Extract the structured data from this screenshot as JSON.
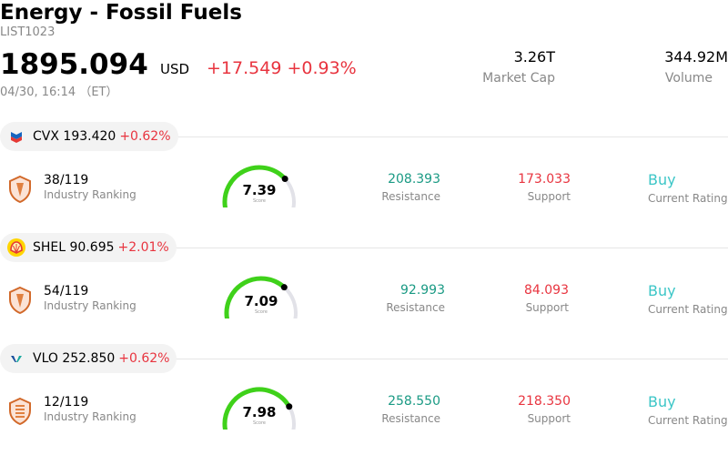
{
  "header": {
    "title": "Energy - Fossil Fuels",
    "code": "LIST1023",
    "price": "1895.094",
    "currency": "USD",
    "change": "+17.549 +0.93%",
    "timestamp": "04/30, 16:14 （ET）",
    "market_cap_value": "3.26T",
    "market_cap_label": "Market Cap",
    "volume_value": "344.92M",
    "volume_label": "Volume"
  },
  "labels": {
    "industry_ranking": "Industry Ranking",
    "resistance": "Resistance",
    "support": "Support",
    "current_rating": "Current Rating",
    "score": "Score"
  },
  "stocks": [
    {
      "ticker": "CVX",
      "price": "193.420",
      "change": "+0.62%",
      "rank": "38/119",
      "score": "7.39",
      "score_fraction": 0.739,
      "resistance": "208.393",
      "support": "173.033",
      "rating": "Buy",
      "logo_icon": "chevron-logo-icon"
    },
    {
      "ticker": "SHEL",
      "price": "90.695",
      "change": "+2.01%",
      "rank": "54/119",
      "score": "7.09",
      "score_fraction": 0.709,
      "resistance": "92.993",
      "support": "84.093",
      "rating": "Buy",
      "logo_icon": "shell-logo-icon"
    },
    {
      "ticker": "VLO",
      "price": "252.850",
      "change": "+0.62%",
      "rank": "12/119",
      "score": "7.98",
      "score_fraction": 0.798,
      "resistance": "258.550",
      "support": "218.350",
      "rating": "Buy",
      "logo_icon": "valero-logo-icon"
    }
  ],
  "colors": {
    "positive_change": "#e8343f",
    "resistance": "#1a9a84",
    "rating": "#3cc6c7",
    "gauge_fill": "#3fd11a",
    "gauge_track": "#e2e2e8"
  }
}
